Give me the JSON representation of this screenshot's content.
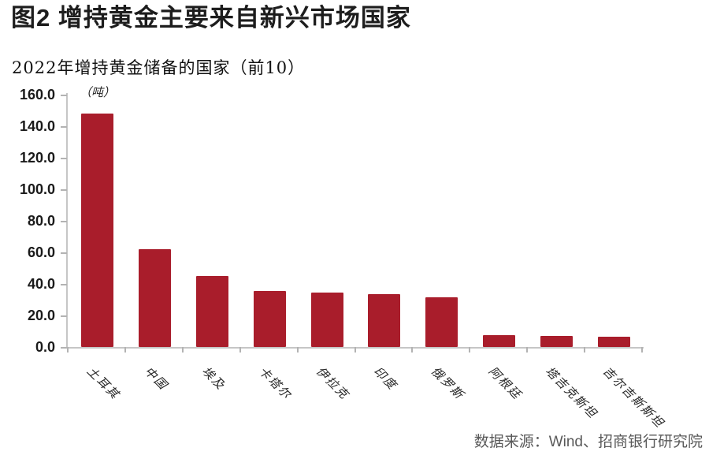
{
  "figure": {
    "caption": "图2  增持黄金主要来自新兴市场国家",
    "source": "数据来源：Wind、招商银行研究院"
  },
  "chart_data": {
    "type": "bar",
    "title": "2022年增持黄金储备的国家（前10）",
    "unit_label": "（吨）",
    "categories": [
      "土耳其",
      "中国",
      "埃及",
      "卡塔尔",
      "伊拉克",
      "印度",
      "俄罗斯",
      "阿根廷",
      "塔吉克斯坦",
      "吉尔吉斯斯坦"
    ],
    "values": [
      148,
      62,
      45,
      35.5,
      34.5,
      33.5,
      31.5,
      7.5,
      7,
      6.5
    ],
    "xlabel": "",
    "ylabel": "",
    "ylim": [
      0,
      160
    ],
    "ytick_step": 20,
    "ytick_labels": [
      "0.0",
      "20.0",
      "40.0",
      "60.0",
      "80.0",
      "100.0",
      "120.0",
      "140.0",
      "160.0"
    ],
    "grid": false,
    "legend": "none",
    "bar_color": "#a91d2b",
    "axis_color": "#c6c6c6",
    "label_rotation_deg": 45
  }
}
